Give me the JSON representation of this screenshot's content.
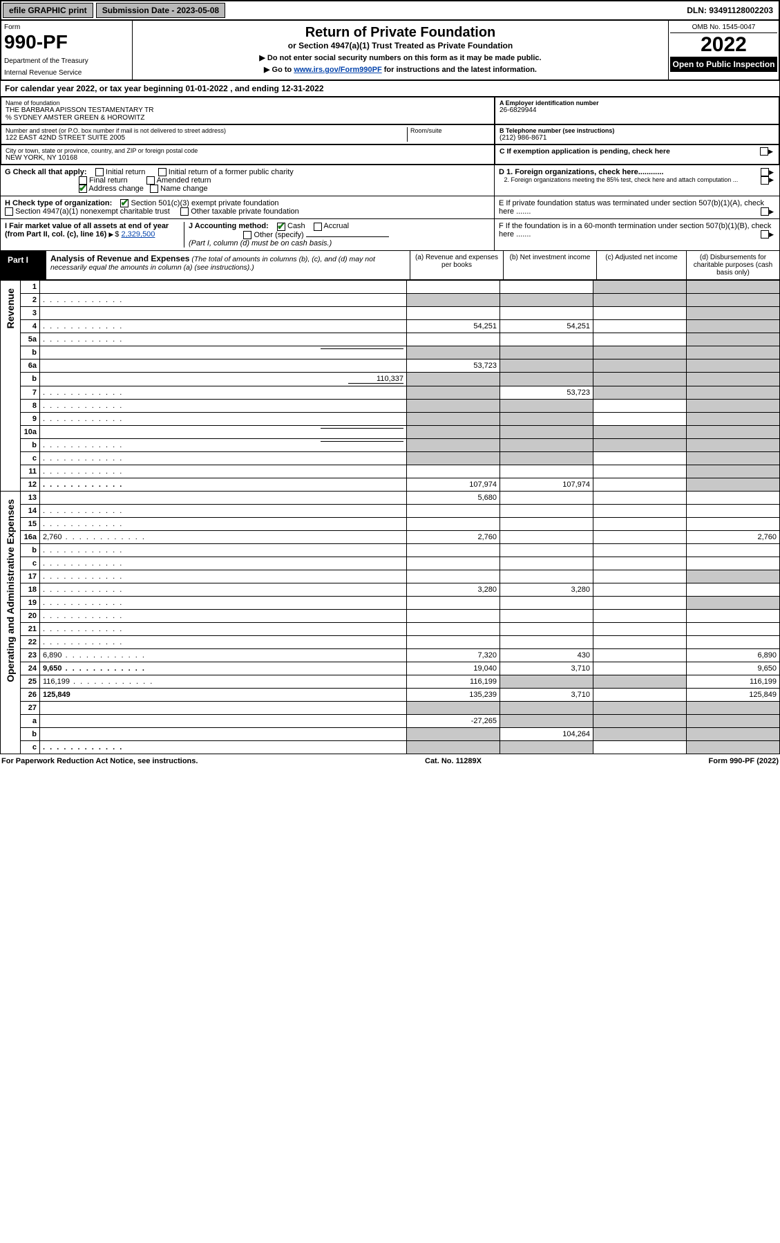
{
  "topbar": {
    "efile": "efile GRAPHIC print",
    "subdate_label": "Submission Date - 2023-05-08",
    "dln": "DLN: 93491128002203"
  },
  "header": {
    "form_label": "Form",
    "form_number": "990-PF",
    "dept": "Department of the Treasury",
    "irs": "Internal Revenue Service",
    "title": "Return of Private Foundation",
    "subtitle": "or Section 4947(a)(1) Trust Treated as Private Foundation",
    "note1": "▶ Do not enter social security numbers on this form as it may be made public.",
    "note2_pre": "▶ Go to ",
    "note2_link": "www.irs.gov/Form990PF",
    "note2_post": " for instructions and the latest information.",
    "omb": "OMB No. 1545-0047",
    "year": "2022",
    "open": "Open to Public Inspection"
  },
  "calyear": {
    "text_pre": "For calendar year 2022, or tax year beginning ",
    "begin": "01-01-2022",
    "text_mid": " , and ending ",
    "end": "12-31-2022"
  },
  "info": {
    "name_lbl": "Name of foundation",
    "name1": "THE BARBARA APISSON TESTAMENTARY TR",
    "name2": "% SYDNEY AMSTER GREEN & HOROWITZ",
    "addr_lbl": "Number and street (or P.O. box number if mail is not delivered to street address)",
    "addr": "122 EAST 42ND STREET SUITE 2005",
    "room_lbl": "Room/suite",
    "city_lbl": "City or town, state or province, country, and ZIP or foreign postal code",
    "city": "NEW YORK, NY  10168",
    "ein_lbl": "A Employer identification number",
    "ein": "26-6829944",
    "phone_lbl": "B Telephone number (see instructions)",
    "phone": "(212) 986-8671",
    "c_lbl": "C If exemption application is pending, check here",
    "d1": "D 1. Foreign organizations, check here............",
    "d2": "2. Foreign organizations meeting the 85% test, check here and attach computation ...",
    "e": "E  If private foundation status was terminated under section 507(b)(1)(A), check here .......",
    "f": "F  If the foundation is in a 60-month termination under section 507(b)(1)(B), check here .......",
    "g_lbl": "G Check all that apply:",
    "g_initial": "Initial return",
    "g_initial_former": "Initial return of a former public charity",
    "g_final": "Final return",
    "g_amended": "Amended return",
    "g_address": "Address change",
    "g_name": "Name change",
    "h_lbl": "H Check type of organization:",
    "h_501c3": "Section 501(c)(3) exempt private foundation",
    "h_4947": "Section 4947(a)(1) nonexempt charitable trust",
    "h_other": "Other taxable private foundation",
    "i_lbl": "I Fair market value of all assets at end of year (from Part II, col. (c), line 16)",
    "i_val": "2,329,500",
    "j_lbl": "J Accounting method:",
    "j_cash": "Cash",
    "j_accrual": "Accrual",
    "j_other": "Other (specify)",
    "j_note": "(Part I, column (d) must be on cash basis.)"
  },
  "part1": {
    "label": "Part I",
    "title": "Analysis of Revenue and Expenses",
    "title_note": "(The total of amounts in columns (b), (c), and (d) may not necessarily equal the amounts in column (a) (see instructions).)",
    "col_a": "(a)   Revenue and expenses per books",
    "col_b": "(b)   Net investment income",
    "col_c": "(c)   Adjusted net income",
    "col_d": "(d)  Disbursements for charitable purposes (cash basis only)"
  },
  "sections": {
    "revenue": "Revenue",
    "opex": "Operating and Administrative Expenses"
  },
  "rows": [
    {
      "n": "1",
      "d": "",
      "a": "",
      "b": "",
      "c": "",
      "shade_c": true,
      "shade_d": true
    },
    {
      "n": "2",
      "d": "",
      "a": "",
      "b": "",
      "c": "",
      "shade_a": true,
      "shade_b": true,
      "shade_c": true,
      "shade_d": true,
      "dots": true
    },
    {
      "n": "3",
      "d": "",
      "a": "",
      "b": "",
      "c": "",
      "shade_d": true
    },
    {
      "n": "4",
      "d": "",
      "a": "54,251",
      "b": "54,251",
      "c": "",
      "shade_d": true,
      "dots": true
    },
    {
      "n": "5a",
      "d": "",
      "a": "",
      "b": "",
      "c": "",
      "shade_d": true,
      "dots": true
    },
    {
      "n": "b",
      "d": "",
      "a": "",
      "b": "",
      "c": "",
      "shade_a": true,
      "shade_b": true,
      "shade_c": true,
      "shade_d": true,
      "inline": true
    },
    {
      "n": "6a",
      "d": "",
      "a": "53,723",
      "b": "",
      "c": "",
      "shade_b": true,
      "shade_c": true,
      "shade_d": true
    },
    {
      "n": "b",
      "d": "",
      "inline_val": "110,337",
      "a": "",
      "b": "",
      "c": "",
      "shade_a": true,
      "shade_b": true,
      "shade_c": true,
      "shade_d": true
    },
    {
      "n": "7",
      "d": "",
      "a": "",
      "b": "53,723",
      "c": "",
      "shade_a": true,
      "shade_c": true,
      "shade_d": true,
      "dots": true
    },
    {
      "n": "8",
      "d": "",
      "a": "",
      "b": "",
      "c": "",
      "shade_a": true,
      "shade_b": true,
      "shade_d": true,
      "dots": true
    },
    {
      "n": "9",
      "d": "",
      "a": "",
      "b": "",
      "c": "",
      "shade_a": true,
      "shade_b": true,
      "shade_d": true,
      "dots": true
    },
    {
      "n": "10a",
      "d": "",
      "a": "",
      "b": "",
      "c": "",
      "shade_a": true,
      "shade_b": true,
      "shade_c": true,
      "shade_d": true,
      "inline": true
    },
    {
      "n": "b",
      "d": "",
      "a": "",
      "b": "",
      "c": "",
      "shade_a": true,
      "shade_b": true,
      "shade_c": true,
      "shade_d": true,
      "inline": true,
      "dots": true
    },
    {
      "n": "c",
      "d": "",
      "a": "",
      "b": "",
      "c": "",
      "shade_a": true,
      "shade_b": true,
      "shade_d": true,
      "dots": true
    },
    {
      "n": "11",
      "d": "",
      "a": "",
      "b": "",
      "c": "",
      "shade_d": true,
      "dots": true
    },
    {
      "n": "12",
      "d": "",
      "a": "107,974",
      "b": "107,974",
      "c": "",
      "shade_d": true,
      "bold": true,
      "dots": true
    },
    {
      "n": "13",
      "d": "",
      "a": "5,680",
      "b": "",
      "c": ""
    },
    {
      "n": "14",
      "d": "",
      "a": "",
      "b": "",
      "c": "",
      "dots": true
    },
    {
      "n": "15",
      "d": "",
      "a": "",
      "b": "",
      "c": "",
      "dots": true
    },
    {
      "n": "16a",
      "d": "2,760",
      "a": "2,760",
      "b": "",
      "c": "",
      "dots": true
    },
    {
      "n": "b",
      "d": "",
      "a": "",
      "b": "",
      "c": "",
      "dots": true
    },
    {
      "n": "c",
      "d": "",
      "a": "",
      "b": "",
      "c": "",
      "dots": true
    },
    {
      "n": "17",
      "d": "",
      "a": "",
      "b": "",
      "c": "",
      "shade_d": true,
      "dots": true
    },
    {
      "n": "18",
      "d": "",
      "a": "3,280",
      "b": "3,280",
      "c": "",
      "dots": true
    },
    {
      "n": "19",
      "d": "",
      "a": "",
      "b": "",
      "c": "",
      "shade_d": true,
      "dots": true
    },
    {
      "n": "20",
      "d": "",
      "a": "",
      "b": "",
      "c": "",
      "dots": true
    },
    {
      "n": "21",
      "d": "",
      "a": "",
      "b": "",
      "c": "",
      "dots": true
    },
    {
      "n": "22",
      "d": "",
      "a": "",
      "b": "",
      "c": "",
      "dots": true
    },
    {
      "n": "23",
      "d": "6,890",
      "a": "7,320",
      "b": "430",
      "c": "",
      "dots": true
    },
    {
      "n": "24",
      "d": "9,650",
      "a": "19,040",
      "b": "3,710",
      "c": "",
      "bold": true,
      "dots": true
    },
    {
      "n": "25",
      "d": "116,199",
      "a": "116,199",
      "b": "",
      "c": "",
      "shade_b": true,
      "shade_c": true,
      "dots": true
    },
    {
      "n": "26",
      "d": "125,849",
      "a": "135,239",
      "b": "3,710",
      "c": "",
      "bold": true
    },
    {
      "n": "27",
      "d": "",
      "a": "",
      "b": "",
      "c": "",
      "shade_a": true,
      "shade_b": true,
      "shade_c": true,
      "shade_d": true
    },
    {
      "n": "a",
      "d": "",
      "a": "-27,265",
      "b": "",
      "c": "",
      "shade_b": true,
      "shade_c": true,
      "shade_d": true,
      "bold": true
    },
    {
      "n": "b",
      "d": "",
      "a": "",
      "b": "104,264",
      "c": "",
      "shade_a": true,
      "shade_c": true,
      "shade_d": true,
      "bold": true
    },
    {
      "n": "c",
      "d": "",
      "a": "",
      "b": "",
      "c": "",
      "shade_a": true,
      "shade_b": true,
      "shade_d": true,
      "bold": true,
      "dots": true
    }
  ],
  "footer": {
    "left": "For Paperwork Reduction Act Notice, see instructions.",
    "center": "Cat. No. 11289X",
    "right": "Form 990-PF (2022)"
  },
  "colors": {
    "shade": "#c8c8c8",
    "btn": "#b8b8b8",
    "link": "#0645ad",
    "check": "#1a7a1a"
  }
}
